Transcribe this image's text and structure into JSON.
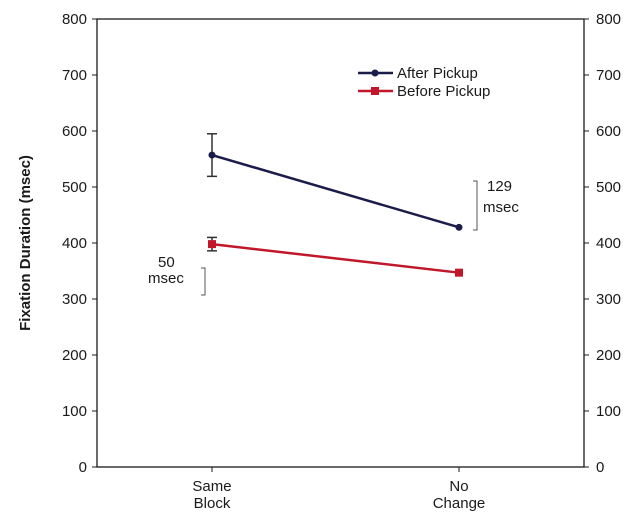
{
  "chart_data": {
    "type": "line",
    "title": "",
    "ylabel": "Fixation Duration (msec)",
    "xlabel": "",
    "ylim": [
      0,
      800
    ],
    "yticks": [
      0,
      100,
      200,
      300,
      400,
      500,
      600,
      700,
      800
    ],
    "ytick_labels": [
      "0",
      "100",
      "200",
      "300",
      "400",
      "500",
      "600",
      "700",
      "800"
    ],
    "categories": [
      {
        "line1": "Same",
        "line2": "Block"
      },
      {
        "line1": "No",
        "line2": "Change"
      }
    ],
    "grid": false,
    "legend_position": "top-right",
    "series": [
      {
        "name": "After Pickup",
        "color": "#1c1c4a",
        "values": [
          557,
          428
        ],
        "error": [
          38,
          null
        ]
      },
      {
        "name": "Before Pickup",
        "color": "#c0182a",
        "values": [
          398,
          347
        ],
        "error": [
          12,
          null
        ]
      }
    ],
    "annotations": {
      "left": {
        "line1": "50",
        "line2": "msec"
      },
      "right": {
        "line1": "129",
        "line2": "msec"
      }
    }
  }
}
